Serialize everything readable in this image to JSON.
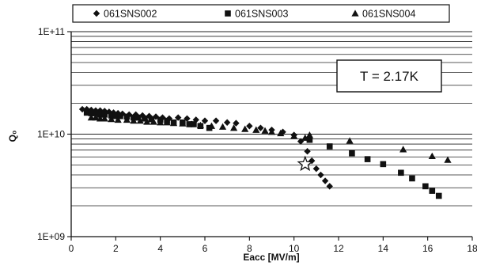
{
  "chart_data": {
    "type": "scatter",
    "title": "",
    "xlabel": "Eacc [MV/m]",
    "ylabel": "Q₀",
    "xlim": [
      0,
      18
    ],
    "ylim": [
      1000000000,
      100000000000
    ],
    "yscale": "log",
    "grid": "horizontal",
    "legend_position": "top",
    "x_ticks": [
      "0",
      "2",
      "4",
      "6",
      "8",
      "10",
      "12",
      "14",
      "16",
      "18"
    ],
    "y_ticks": [
      "1E+09",
      "1E+10",
      "1E+11"
    ],
    "annotation": "T = 2.17K",
    "series": [
      {
        "name": "061SNS002",
        "marker": "diamond",
        "x": [
          0.5,
          0.7,
          0.9,
          1.1,
          1.3,
          1.5,
          1.7,
          1.9,
          2.1,
          2.3,
          2.6,
          2.9,
          3.2,
          3.5,
          3.8,
          4.1,
          4.4,
          4.8,
          5.2,
          5.6,
          6.0,
          6.5,
          7.0,
          7.4,
          8.0,
          8.5,
          9.0,
          9.5,
          10.0,
          10.3,
          10.6,
          10.8,
          11.0,
          11.2,
          11.4,
          11.6
        ],
        "y": [
          17500000000.0,
          17500000000.0,
          17200000000.0,
          17000000000.0,
          17000000000.0,
          16800000000.0,
          16500000000.0,
          16200000000.0,
          16000000000.0,
          15800000000.0,
          15500000000.0,
          15500000000.0,
          15200000000.0,
          15000000000.0,
          14800000000.0,
          14500000000.0,
          14200000000.0,
          14500000000.0,
          14200000000.0,
          13800000000.0,
          13500000000.0,
          13500000000.0,
          13000000000.0,
          12800000000.0,
          12000000000.0,
          11500000000.0,
          11000000000.0,
          10500000000.0,
          9800000000.0,
          8500000000.0,
          6800000000.0,
          5500000000.0,
          4600000000.0,
          4000000000.0,
          3500000000.0,
          3100000000.0
        ]
      },
      {
        "name": "061SNS003",
        "marker": "square",
        "x": [
          0.7,
          0.9,
          1.1,
          1.3,
          1.5,
          1.8,
          2.0,
          2.2,
          2.5,
          2.8,
          3.0,
          3.3,
          3.6,
          4.0,
          4.3,
          4.6,
          5.0,
          5.3,
          5.5,
          5.8,
          6.2,
          10.7,
          11.6,
          12.6,
          13.3,
          14.0,
          14.8,
          15.3,
          15.9,
          16.2,
          16.5
        ],
        "y": [
          16200000000.0,
          16000000000.0,
          16000000000.0,
          15500000000.0,
          15500000000.0,
          15200000000.0,
          15000000000.0,
          15000000000.0,
          14800000000.0,
          14500000000.0,
          14500000000.0,
          14200000000.0,
          14000000000.0,
          13800000000.0,
          13500000000.0,
          13000000000.0,
          13000000000.0,
          12500000000.0,
          12500000000.0,
          12000000000.0,
          11500000000.0,
          8800000000.0,
          7600000000.0,
          6500000000.0,
          5700000000.0,
          5100000000.0,
          4200000000.0,
          3700000000.0,
          3100000000.0,
          2800000000.0,
          2500000000.0
        ]
      },
      {
        "name": "061SNS004",
        "marker": "triangle",
        "x": [
          0.9,
          1.1,
          1.3,
          1.5,
          1.8,
          2.1,
          2.5,
          2.8,
          3.1,
          3.4,
          3.7,
          4.0,
          4.3,
          4.6,
          5.0,
          5.4,
          5.8,
          6.3,
          6.8,
          7.3,
          7.8,
          8.3,
          8.7,
          9.0,
          9.4,
          10.0,
          10.5,
          10.7,
          12.5,
          14.9,
          16.2,
          16.9
        ],
        "y": [
          14500000000.0,
          14500000000.0,
          14200000000.0,
          14200000000.0,
          14000000000.0,
          13800000000.0,
          13800000000.0,
          13500000000.0,
          13500000000.0,
          13200000000.0,
          13200000000.0,
          13000000000.0,
          13000000000.0,
          12800000000.0,
          12700000000.0,
          12500000000.0,
          12200000000.0,
          12000000000.0,
          11800000000.0,
          11500000000.0,
          11200000000.0,
          11000000000.0,
          10800000000.0,
          10500000000.0,
          10200000000.0,
          9600000000.0,
          9200000000.0,
          9800000000.0,
          8600000000.0,
          7100000000.0,
          6100000000.0,
          5600000000.0
        ]
      }
    ],
    "highlight_point": {
      "marker": "star",
      "x": 10.5,
      "y": 5100000000.0
    }
  }
}
